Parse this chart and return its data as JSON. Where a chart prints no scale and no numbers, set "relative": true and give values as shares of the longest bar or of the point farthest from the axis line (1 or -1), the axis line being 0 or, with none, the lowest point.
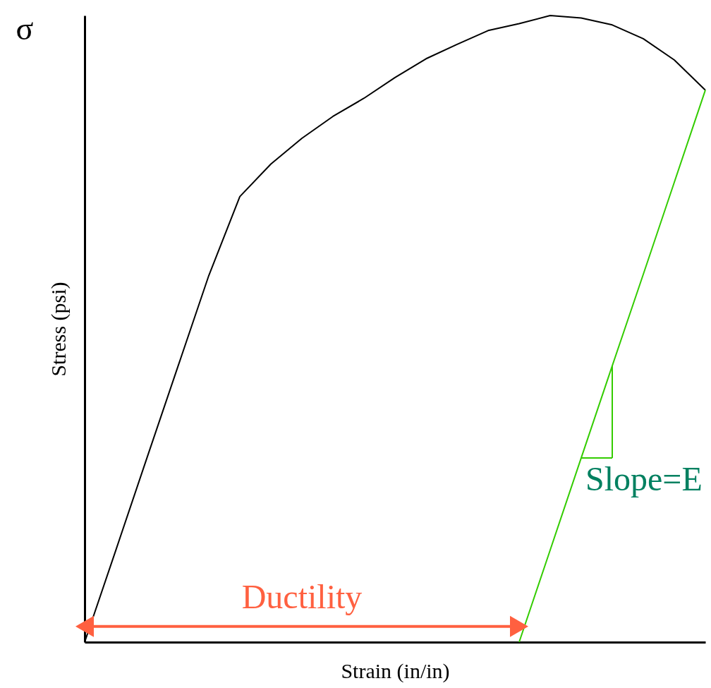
{
  "chart_data": {
    "type": "line",
    "relative": true,
    "xlabel": "Strain (in/in)",
    "ylabel": "Stress (psi)",
    "line_style": "solid",
    "categories": [
      null,
      null,
      null,
      null,
      null,
      null,
      null,
      null,
      null,
      null,
      null,
      null,
      null,
      null,
      null,
      null,
      null,
      null,
      null,
      null,
      null
    ],
    "series": [
      {
        "color": "#000000",
        "values": [
          0,
          0.146,
          0.293,
          0.439,
          0.585,
          0.711,
          0.763,
          0.804,
          0.839,
          0.868,
          0.901,
          0.931,
          0.954,
          0.976,
          0.987,
          1.0,
          0.996,
          0.985,
          0.963,
          0.929,
          0.881
        ]
      },
      {
        "color": "#33cc00",
        "values": [
          null,
          null,
          null,
          null,
          null,
          null,
          null,
          null,
          null,
          null,
          null,
          null,
          null,
          null,
          0,
          0.147,
          0.294,
          0.441,
          0.587,
          0.734,
          0.881
        ]
      },
      {
        "color": "#ff6040",
        "values": [
          0.025,
          0.025,
          0.025,
          0.025,
          0.025,
          0.025,
          0.025,
          0.025,
          0.025,
          0.025,
          0.025,
          0.025,
          0.025,
          0.025,
          0.025,
          null,
          null,
          null,
          null,
          null,
          null
        ]
      }
    ],
    "annotations": [
      "σ",
      "Ductility",
      "Slope=E"
    ]
  }
}
